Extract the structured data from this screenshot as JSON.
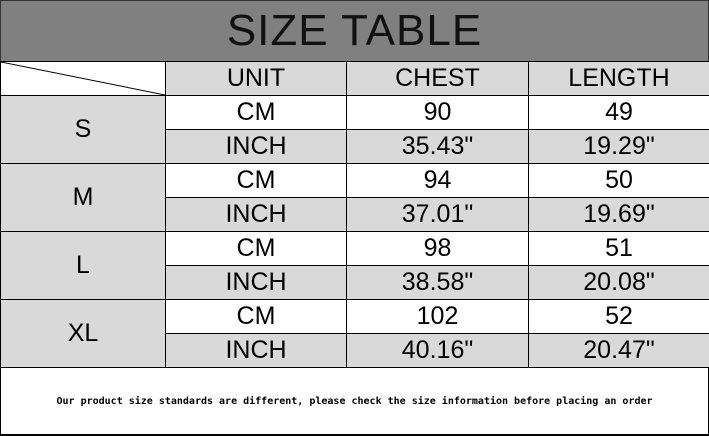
{
  "title": "SIZE TABLE",
  "headers": [
    "UNIT",
    "CHEST",
    "LENGTH"
  ],
  "rows": [
    {
      "size": "S",
      "cm": {
        "unit": "CM",
        "chest": "90",
        "length": "49"
      },
      "inch": {
        "unit": "INCH",
        "chest": "35.43\"",
        "length": "19.29\""
      }
    },
    {
      "size": "M",
      "cm": {
        "unit": "CM",
        "chest": "94",
        "length": "50"
      },
      "inch": {
        "unit": "INCH",
        "chest": "37.01\"",
        "length": "19.69\""
      }
    },
    {
      "size": "L",
      "cm": {
        "unit": "CM",
        "chest": "98",
        "length": "51"
      },
      "inch": {
        "unit": "INCH",
        "chest": "38.58\"",
        "length": "20.08\""
      }
    },
    {
      "size": "XL",
      "cm": {
        "unit": "CM",
        "chest": "102",
        "length": "52"
      },
      "inch": {
        "unit": "INCH",
        "chest": "40.16\"",
        "length": "20.47\""
      }
    }
  ],
  "footer": "Our product size standards are different, please check the size information before placing an order",
  "colors": {
    "title_bg": "#808080",
    "shaded": "#d9d9d9",
    "white": "#ffffff"
  }
}
